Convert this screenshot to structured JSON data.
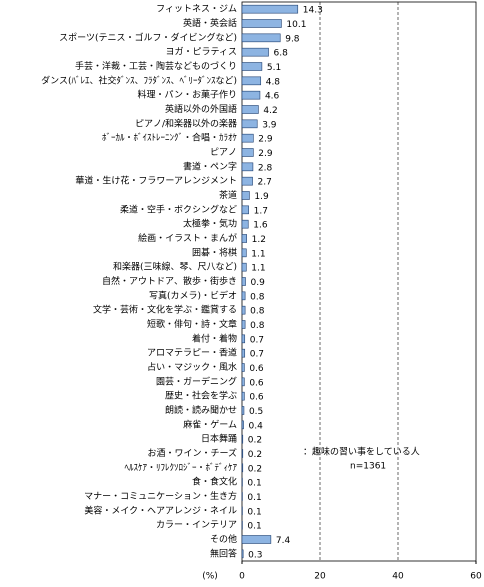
{
  "chart_data": {
    "type": "bar",
    "orientation": "horizontal",
    "categories": [
      "フィットネス・ジム",
      "英語・英会話",
      "スポーツ(テニス・ゴルフ・ダイビングなど)",
      "ヨガ・ピラティス",
      "手芸・洋裁・工芸・陶芸などものづくり",
      "ダンス(ﾊﾞﾚｴ、社交ﾀﾞﾝｽ、ﾌﾗﾀﾞﾝｽ、ﾍﾞﾘｰﾀﾞﾝｽなど)",
      "料理・パン・お菓子作り",
      "英語以外の外国語",
      "ピアノ/和楽器以外の楽器",
      "ﾎﾞｰｶﾙ・ﾎﾞｲｽﾄﾚｰﾆﾝｸﾞ・合唱・ｶﾗｵｹ",
      "ピアノ",
      "書道・ペン字",
      "華道・生け花・フラワーアレンジメント",
      "茶道",
      "柔道・空手・ボクシングなど",
      "太極拳・気功",
      "絵画・イラスト・まんが",
      "囲碁・将棋",
      "和楽器(三味線、琴、尺八など)",
      "自然・アウトドア、散歩・街歩き",
      "写真(カメラ)・ビデオ",
      "文学・芸術・文化を学ぶ・鑑賞する",
      "短歌・俳句・詩・文章",
      "着付・着物",
      "アロマテラピー・香道",
      "占い・マジック・風水",
      "園芸・ガーデニング",
      "歴史・社会を学ぶ",
      "朗読・読み聞かせ",
      "麻雀・ゲーム",
      "日本舞踊",
      "お酒・ワイン・チーズ",
      "ﾍﾙｽｹｱ・ﾘﾌﾚｸｿﾛｼﾞｰ・ﾎﾞﾃﾞｨｹｱ",
      "食・食文化",
      "マナー・コミュニケーション・生き方",
      "美容・メイク・ヘアアレンジ・ネイル",
      "カラー・インテリア",
      "その他",
      "無回答"
    ],
    "values": [
      14.3,
      10.1,
      9.8,
      6.8,
      5.1,
      4.8,
      4.6,
      4.2,
      3.9,
      2.9,
      2.9,
      2.8,
      2.7,
      1.9,
      1.7,
      1.6,
      1.2,
      1.1,
      1.1,
      0.9,
      0.8,
      0.8,
      0.8,
      0.7,
      0.7,
      0.6,
      0.6,
      0.6,
      0.5,
      0.4,
      0.2,
      0.2,
      0.2,
      0.1,
      0.1,
      0.1,
      0.1,
      7.4,
      0.3
    ],
    "color": "#8db4e2",
    "x_label": "(%)",
    "xlim": [
      0,
      60
    ],
    "xticks": [
      0,
      20,
      40,
      60
    ],
    "grid": true,
    "annotations": [
      "：趣味の習い事をしている人",
      "n=1361"
    ]
  }
}
